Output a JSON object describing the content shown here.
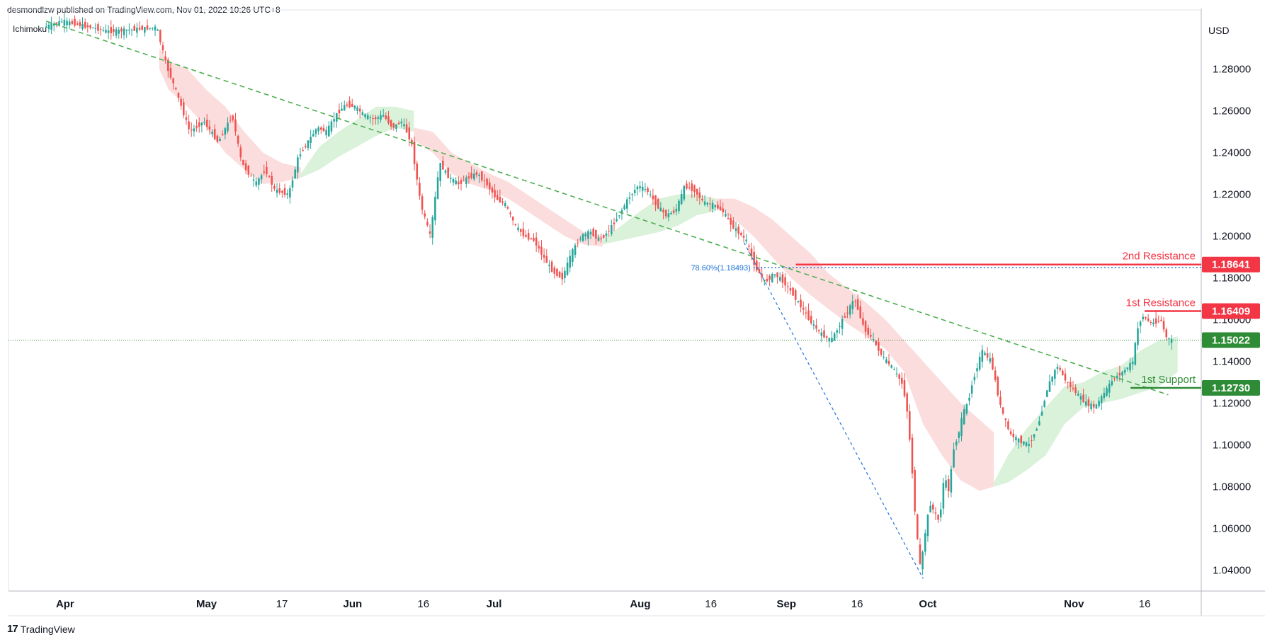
{
  "header": {
    "publisher_line": "desmondlzw published on TradingView.com, Nov 01, 2022 10:26 UTC+8",
    "indicator": "Ichimoku",
    "currency": "USD"
  },
  "footer": {
    "brand": "TradingView",
    "logo_glyph": "17"
  },
  "colors": {
    "resistance": "#f23645",
    "support": "#2e8b36",
    "current": "#2e8b36",
    "trendline": "#4caf50",
    "fib": "#1e74d9",
    "candle_up": "#26a69a",
    "candle_down": "#ef5350",
    "cloud_bull": "#d6efd6",
    "cloud_bear": "#fbd9d9"
  },
  "chart_data": {
    "type": "candlestick",
    "title": "",
    "ylabel": "USD",
    "ylim": [
      1.03,
      1.305
    ],
    "y_ticks": [
      "1.04000",
      "1.06000",
      "1.08000",
      "1.10000",
      "1.12000",
      "1.14000",
      "1.16000",
      "1.18000",
      "1.20000",
      "1.22000",
      "1.24000",
      "1.26000",
      "1.28000"
    ],
    "x_ticks": [
      {
        "label": "Apr",
        "day": 0,
        "bold": true
      },
      {
        "label": "May",
        "day": 30,
        "bold": true
      },
      {
        "label": "17",
        "day": 46,
        "bold": false
      },
      {
        "label": "Jun",
        "day": 61,
        "bold": true
      },
      {
        "label": "16",
        "day": 76,
        "bold": false
      },
      {
        "label": "Jul",
        "day": 91,
        "bold": true
      },
      {
        "label": "Aug",
        "day": 122,
        "bold": true
      },
      {
        "label": "16",
        "day": 137,
        "bold": false
      },
      {
        "label": "Sep",
        "day": 153,
        "bold": true
      },
      {
        "label": "16",
        "day": 168,
        "bold": false
      },
      {
        "label": "Oct",
        "day": 183,
        "bold": true
      },
      {
        "label": "Nov",
        "day": 214,
        "bold": true
      },
      {
        "label": "16",
        "day": 229,
        "bold": false
      }
    ],
    "price_path": [
      [
        -4,
        1.3
      ],
      [
        0,
        1.303
      ],
      [
        10,
        1.298
      ],
      [
        20,
        1.3
      ],
      [
        22,
        1.282
      ],
      [
        24,
        1.27
      ],
      [
        27,
        1.25
      ],
      [
        30,
        1.255
      ],
      [
        33,
        1.245
      ],
      [
        36,
        1.258
      ],
      [
        38,
        1.235
      ],
      [
        41,
        1.225
      ],
      [
        43,
        1.232
      ],
      [
        45,
        1.222
      ],
      [
        48,
        1.22
      ],
      [
        50,
        1.238
      ],
      [
        52,
        1.245
      ],
      [
        54,
        1.252
      ],
      [
        56,
        1.25
      ],
      [
        58,
        1.258
      ],
      [
        60,
        1.263
      ],
      [
        62,
        1.262
      ],
      [
        64,
        1.258
      ],
      [
        66,
        1.256
      ],
      [
        68,
        1.258
      ],
      [
        70,
        1.252
      ],
      [
        72,
        1.255
      ],
      [
        74,
        1.245
      ],
      [
        76,
        1.215
      ],
      [
        78,
        1.2
      ],
      [
        80,
        1.235
      ],
      [
        82,
        1.228
      ],
      [
        84,
        1.225
      ],
      [
        86,
        1.228
      ],
      [
        88,
        1.23
      ],
      [
        90,
        1.225
      ],
      [
        92,
        1.218
      ],
      [
        94,
        1.215
      ],
      [
        96,
        1.205
      ],
      [
        98,
        1.2
      ],
      [
        100,
        1.198
      ],
      [
        102,
        1.19
      ],
      [
        104,
        1.183
      ],
      [
        106,
        1.18
      ],
      [
        108,
        1.192
      ],
      [
        110,
        1.2
      ],
      [
        112,
        1.202
      ],
      [
        114,
        1.198
      ],
      [
        116,
        1.203
      ],
      [
        118,
        1.21
      ],
      [
        120,
        1.218
      ],
      [
        122,
        1.224
      ],
      [
        124,
        1.222
      ],
      [
        126,
        1.215
      ],
      [
        128,
        1.21
      ],
      [
        130,
        1.212
      ],
      [
        132,
        1.224
      ],
      [
        134,
        1.222
      ],
      [
        136,
        1.216
      ],
      [
        138,
        1.215
      ],
      [
        140,
        1.212
      ],
      [
        142,
        1.205
      ],
      [
        145,
        1.198
      ],
      [
        147,
        1.185
      ],
      [
        149,
        1.178
      ],
      [
        151,
        1.182
      ],
      [
        153,
        1.178
      ],
      [
        155,
        1.172
      ],
      [
        157,
        1.165
      ],
      [
        159,
        1.158
      ],
      [
        161,
        1.153
      ],
      [
        163,
        1.15
      ],
      [
        165,
        1.158
      ],
      [
        167,
        1.166
      ],
      [
        168,
        1.17
      ],
      [
        170,
        1.156
      ],
      [
        172,
        1.15
      ],
      [
        174,
        1.142
      ],
      [
        176,
        1.137
      ],
      [
        178,
        1.13
      ],
      [
        179,
        1.12
      ],
      [
        180,
        1.095
      ],
      [
        181,
        1.062
      ],
      [
        182,
        1.04
      ],
      [
        183,
        1.058
      ],
      [
        184,
        1.072
      ],
      [
        186,
        1.063
      ],
      [
        187,
        1.085
      ],
      [
        188,
        1.078
      ],
      [
        189,
        1.098
      ],
      [
        190,
        1.105
      ],
      [
        191,
        1.115
      ],
      [
        192,
        1.12
      ],
      [
        193,
        1.13
      ],
      [
        195,
        1.145
      ],
      [
        197,
        1.14
      ],
      [
        199,
        1.118
      ],
      [
        201,
        1.105
      ],
      [
        203,
        1.102
      ],
      [
        205,
        1.1
      ],
      [
        207,
        1.11
      ],
      [
        209,
        1.128
      ],
      [
        211,
        1.138
      ],
      [
        213,
        1.13
      ],
      [
        215,
        1.125
      ],
      [
        217,
        1.12
      ],
      [
        219,
        1.118
      ],
      [
        221,
        1.125
      ],
      [
        223,
        1.132
      ],
      [
        225,
        1.135
      ],
      [
        227,
        1.14
      ],
      [
        228,
        1.155
      ],
      [
        229,
        1.162
      ],
      [
        231,
        1.158
      ],
      [
        233,
        1.16
      ],
      [
        234,
        1.152
      ],
      [
        235,
        1.15
      ]
    ],
    "cloud": [
      {
        "trend": "bear",
        "points": [
          [
            20,
            1.29,
            1.28
          ],
          [
            22,
            1.284,
            1.27
          ],
          [
            26,
            1.28,
            1.262
          ],
          [
            30,
            1.27,
            1.252
          ],
          [
            34,
            1.262,
            1.24
          ],
          [
            38,
            1.25,
            1.232
          ],
          [
            42,
            1.24,
            1.225
          ],
          [
            46,
            1.235,
            1.226
          ],
          [
            50,
            1.233,
            1.228
          ]
        ]
      },
      {
        "trend": "bull",
        "points": [
          [
            50,
            1.23,
            1.228
          ],
          [
            54,
            1.243,
            1.232
          ],
          [
            58,
            1.25,
            1.238
          ],
          [
            62,
            1.256,
            1.243
          ],
          [
            66,
            1.262,
            1.248
          ],
          [
            70,
            1.262,
            1.252
          ],
          [
            74,
            1.26,
            1.25
          ]
        ]
      },
      {
        "trend": "bear",
        "points": [
          [
            74,
            1.252,
            1.246
          ],
          [
            78,
            1.25,
            1.24
          ],
          [
            82,
            1.24,
            1.23
          ],
          [
            86,
            1.235,
            1.225
          ],
          [
            90,
            1.23,
            1.222
          ],
          [
            94,
            1.226,
            1.218
          ],
          [
            98,
            1.22,
            1.212
          ],
          [
            102,
            1.214,
            1.206
          ],
          [
            106,
            1.208,
            1.2
          ],
          [
            110,
            1.202,
            1.196
          ],
          [
            114,
            1.2,
            1.195
          ]
        ]
      },
      {
        "trend": "bull",
        "points": [
          [
            114,
            1.198,
            1.196
          ],
          [
            118,
            1.205,
            1.198
          ],
          [
            122,
            1.212,
            1.2
          ],
          [
            126,
            1.218,
            1.202
          ],
          [
            130,
            1.22,
            1.205
          ],
          [
            134,
            1.22,
            1.21
          ],
          [
            138,
            1.218,
            1.212
          ]
        ]
      },
      {
        "trend": "bear",
        "points": [
          [
            138,
            1.218,
            1.214
          ],
          [
            142,
            1.218,
            1.208
          ],
          [
            146,
            1.214,
            1.2
          ],
          [
            150,
            1.208,
            1.19
          ],
          [
            154,
            1.2,
            1.18
          ],
          [
            158,
            1.192,
            1.172
          ],
          [
            162,
            1.182,
            1.165
          ],
          [
            166,
            1.175,
            1.158
          ],
          [
            170,
            1.168,
            1.152
          ],
          [
            174,
            1.16,
            1.146
          ],
          [
            178,
            1.15,
            1.135
          ],
          [
            182,
            1.14,
            1.11
          ],
          [
            186,
            1.13,
            1.095
          ],
          [
            190,
            1.12,
            1.083
          ],
          [
            194,
            1.112,
            1.078
          ],
          [
            197,
            1.106,
            1.08
          ]
        ]
      },
      {
        "trend": "bull",
        "points": [
          [
            197,
            1.082,
            1.08
          ],
          [
            200,
            1.095,
            1.082
          ],
          [
            204,
            1.108,
            1.088
          ],
          [
            208,
            1.118,
            1.095
          ],
          [
            212,
            1.128,
            1.11
          ],
          [
            216,
            1.13,
            1.118
          ],
          [
            220,
            1.135,
            1.12
          ],
          [
            224,
            1.138,
            1.122
          ],
          [
            228,
            1.145,
            1.125
          ],
          [
            232,
            1.15,
            1.128
          ],
          [
            236,
            1.152,
            1.135
          ]
        ]
      }
    ],
    "trendline_main": {
      "from": [
        -4,
        1.303
      ],
      "to": [
        234,
        1.124
      ]
    },
    "fib_line": {
      "from": [
        144,
        1.197
      ],
      "to": [
        182,
        1.036
      ]
    },
    "fib_label": "78.60%(1.18493)",
    "fib_level": 1.18493,
    "fib_start_day": 128,
    "levels": [
      {
        "name": "2nd Resistance",
        "value": 1.18641,
        "tag": "1.18641",
        "role": "resistance",
        "start_day": 155
      },
      {
        "name": "1st Resistance",
        "value": 1.16409,
        "tag": "1.16409",
        "role": "resistance",
        "start_day": 229
      },
      {
        "name": "1st Support",
        "value": 1.1273,
        "tag": "1.12730",
        "role": "support",
        "start_day": 226
      }
    ],
    "current_price": {
      "value": 1.15022,
      "tag": "1.15022"
    },
    "x_range_days": [
      -12,
      241
    ]
  }
}
